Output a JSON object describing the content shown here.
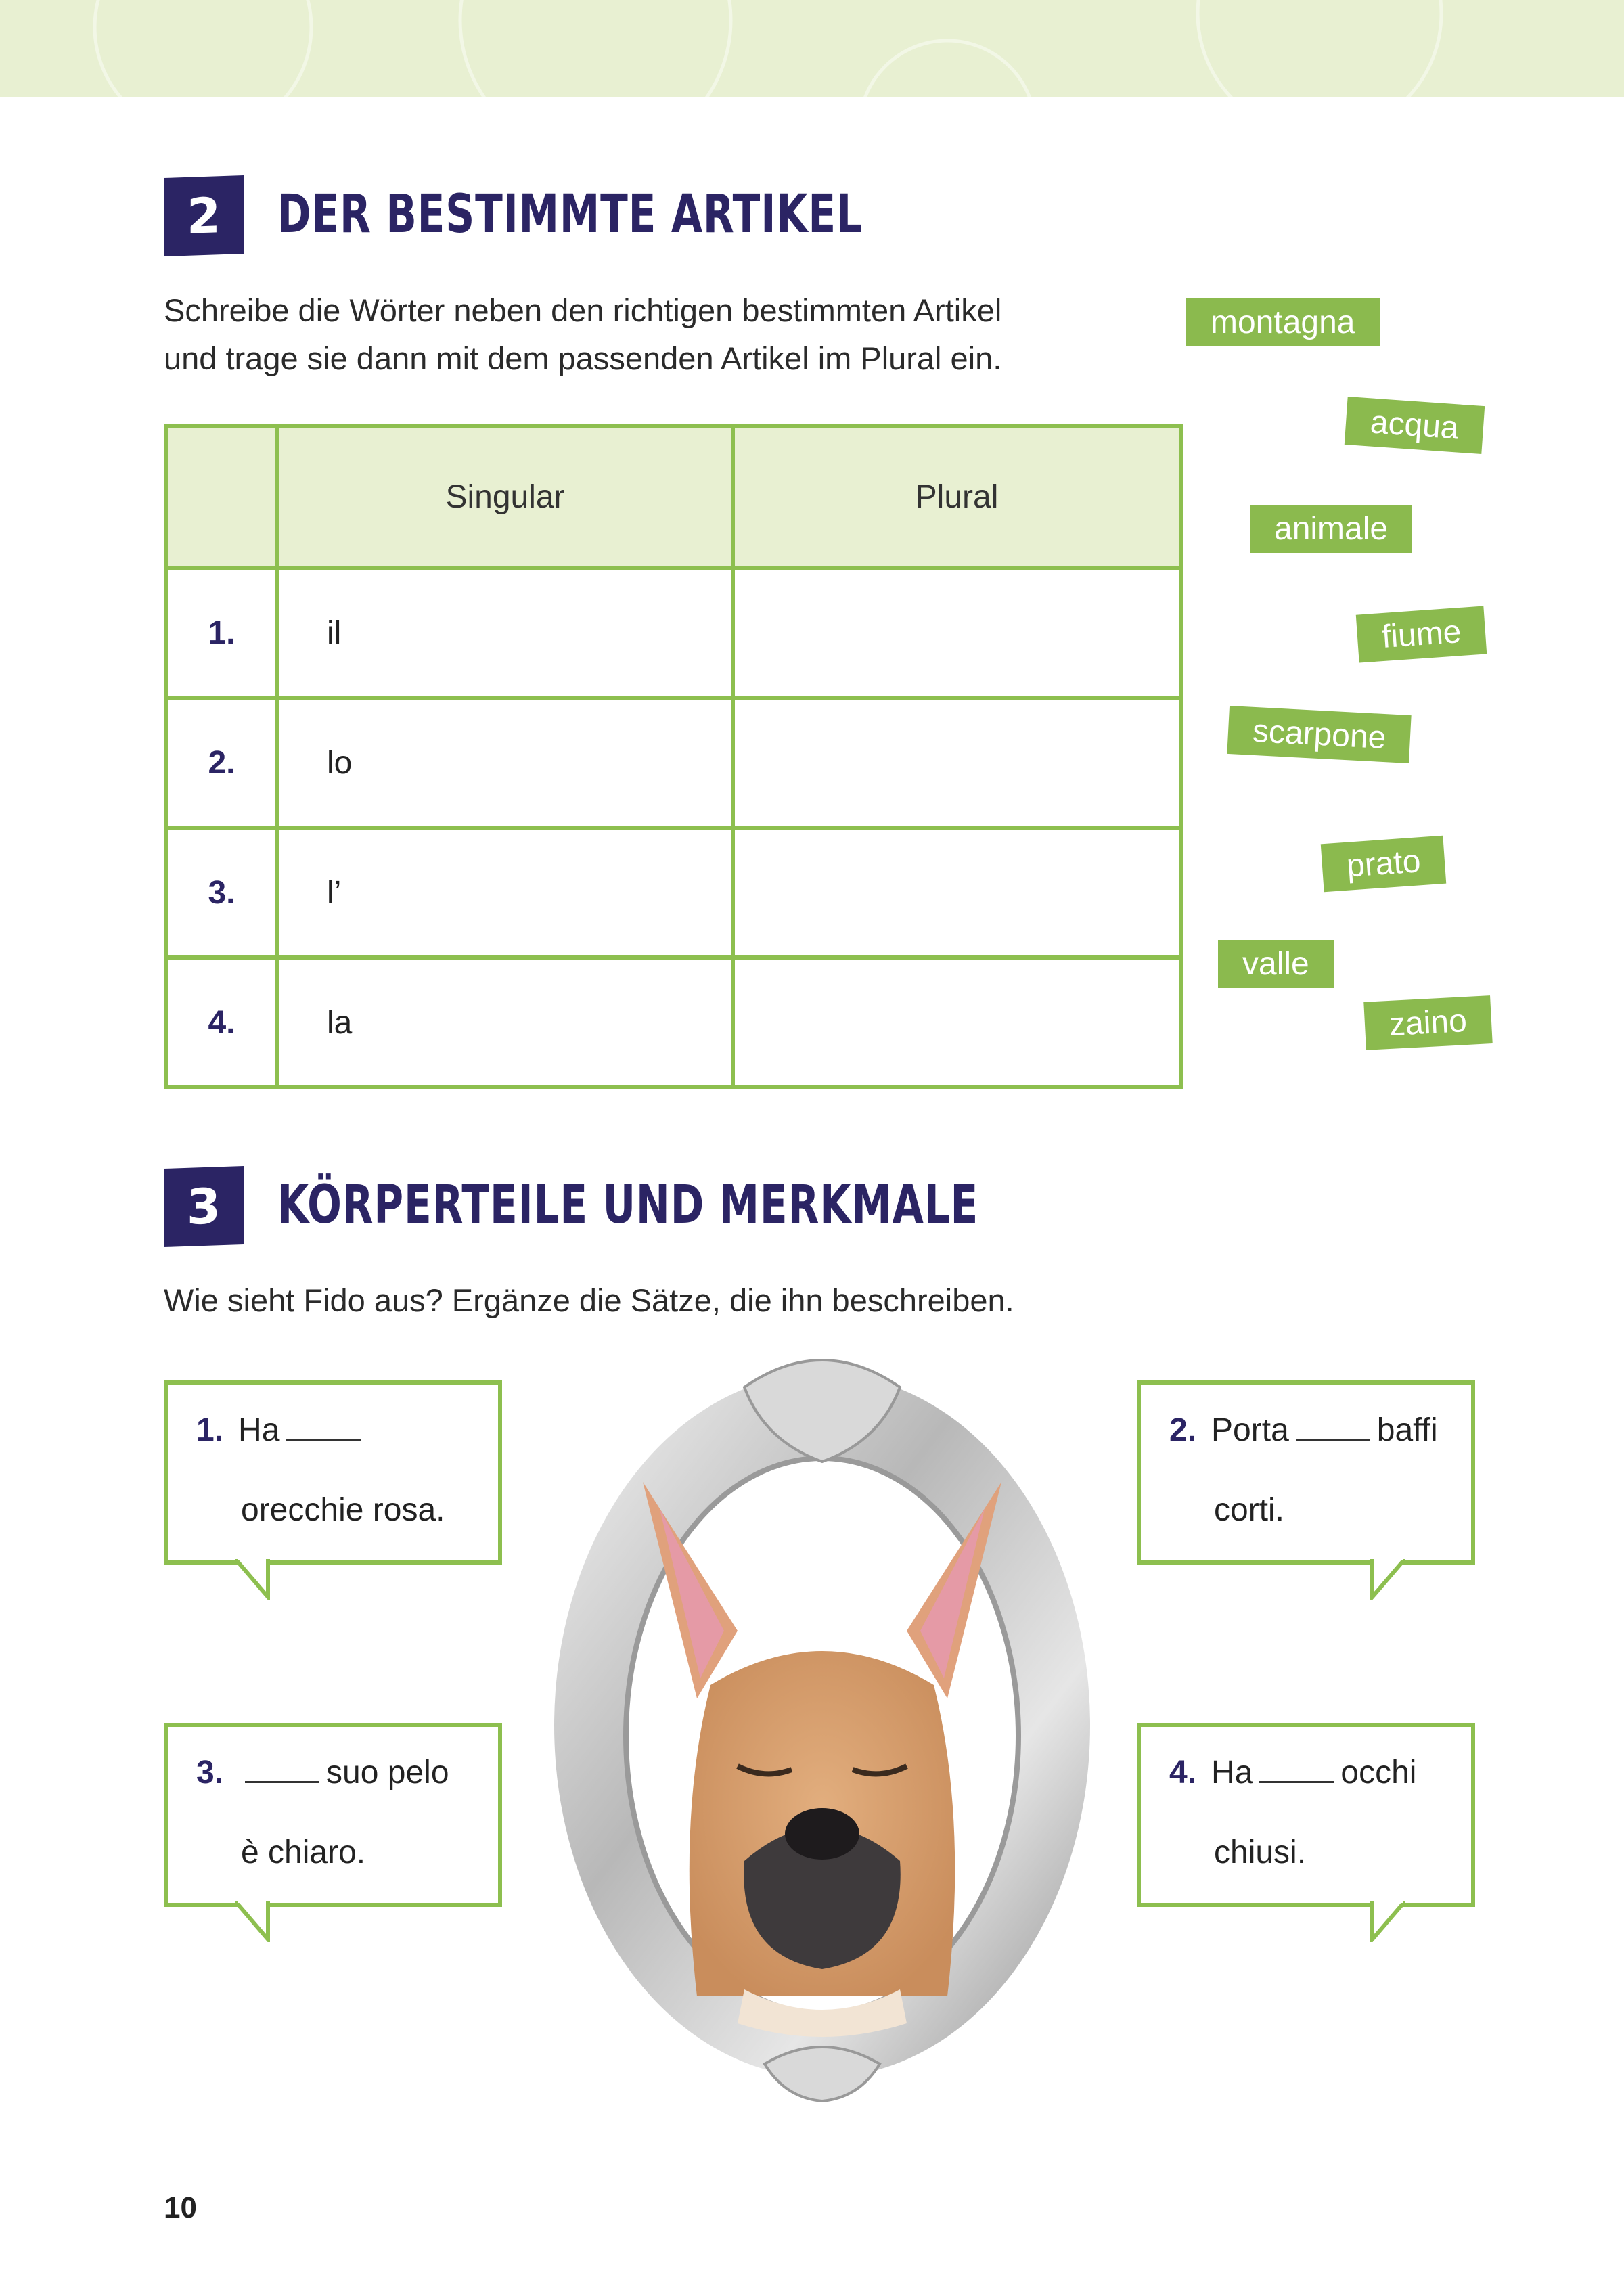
{
  "section2": {
    "number": "2",
    "title": "DER BESTIMMTE ARTIKEL",
    "instruction_line1": "Schreibe die Wörter neben den richtigen bestimmten Artikel",
    "instruction_line2": "und trage sie dann mit dem passenden Artikel im Plural ein.",
    "table": {
      "headers": [
        "",
        "Singular",
        "Plural"
      ],
      "rows": [
        {
          "number": "1.",
          "singular": "il",
          "plural": ""
        },
        {
          "number": "2.",
          "singular": "lo",
          "plural": ""
        },
        {
          "number": "3.",
          "singular": "l’",
          "plural": ""
        },
        {
          "number": "4.",
          "singular": "la",
          "plural": ""
        }
      ]
    },
    "word_tags": [
      "montagna",
      "acqua",
      "animale",
      "fiume",
      "scarpone",
      "prato",
      "valle",
      "zaino"
    ]
  },
  "section3": {
    "number": "3",
    "title": "KÖRPERTEILE UND MERKMALE",
    "instruction": "Wie sieht Fido aus? Ergänze die Sätze, die ihn beschreiben.",
    "bubbles": [
      {
        "number": "1.",
        "before": "Ha",
        "after": "",
        "line2": "orecchie rosa."
      },
      {
        "number": "2.",
        "before": "Porta",
        "after": "baffi",
        "line2": "corti."
      },
      {
        "number": "3.",
        "before": "",
        "after": "suo pelo",
        "line2": "è chiaro."
      },
      {
        "number": "4.",
        "before": "Ha",
        "after": "occhi",
        "line2": "chiusi."
      }
    ],
    "image": "french-bulldog-in-silver-oval-frame"
  },
  "page_number": "10",
  "colors": {
    "navy": "#2b2464",
    "green": "#8dbf4f",
    "light_green": "#e8f0d2"
  }
}
